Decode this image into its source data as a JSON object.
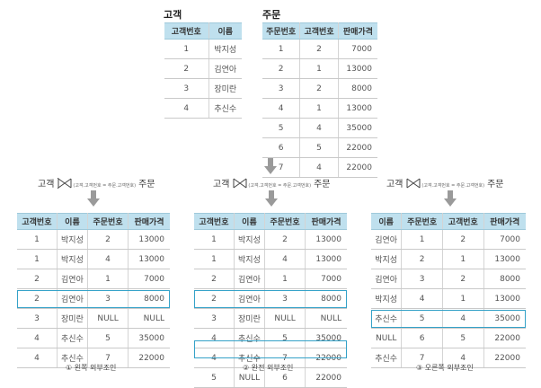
{
  "customer": {
    "title": "고객",
    "headers": [
      "고객번호",
      "이름"
    ],
    "rows": [
      [
        "1",
        "박지성"
      ],
      [
        "2",
        "김연아"
      ],
      [
        "3",
        "장미란"
      ],
      [
        "4",
        "추신수"
      ]
    ]
  },
  "orders": {
    "title": "주문",
    "headers": [
      "주문번호",
      "고객번호",
      "판매가격"
    ],
    "rows": [
      [
        "1",
        "2",
        "7000"
      ],
      [
        "2",
        "1",
        "13000"
      ],
      [
        "3",
        "2",
        "8000"
      ],
      [
        "4",
        "1",
        "13000"
      ],
      [
        "5",
        "4",
        "35000"
      ],
      [
        "6",
        "5",
        "22000"
      ],
      [
        "7",
        "4",
        "22000"
      ]
    ]
  },
  "joins": [
    {
      "left_label": "고객",
      "right_label": "주문",
      "condition": "(고객.고객번호 = 주문.고객번호)",
      "headers": [
        "고객번호",
        "이름",
        "주문번호",
        "판매가격"
      ],
      "rows": [
        [
          "1",
          "박지성",
          "2",
          "13000"
        ],
        [
          "1",
          "박지성",
          "4",
          "13000"
        ],
        [
          "2",
          "김연아",
          "1",
          "7000"
        ],
        [
          "2",
          "김연아",
          "3",
          "8000"
        ],
        [
          "3",
          "장미란",
          "NULL",
          "NULL"
        ],
        [
          "4",
          "추신수",
          "5",
          "35000"
        ],
        [
          "4",
          "추신수",
          "7",
          "22000"
        ]
      ],
      "caption": "① 왼쪽 외부조인"
    },
    {
      "left_label": "고객",
      "right_label": "주문",
      "condition": "(고객.고객번호 = 주문.고객번호)",
      "headers": [
        "고객번호",
        "이름",
        "주문번호",
        "판매가격"
      ],
      "rows": [
        [
          "1",
          "박지성",
          "2",
          "13000"
        ],
        [
          "1",
          "박지성",
          "4",
          "13000"
        ],
        [
          "2",
          "김연아",
          "1",
          "7000"
        ],
        [
          "2",
          "김연아",
          "3",
          "8000"
        ],
        [
          "3",
          "장미란",
          "NULL",
          "NULL"
        ],
        [
          "4",
          "추신수",
          "5",
          "35000"
        ],
        [
          "4",
          "추신수",
          "7",
          "22000"
        ],
        [
          "5",
          "NULL",
          "6",
          "22000"
        ]
      ],
      "caption": "② 완전 외부조인"
    },
    {
      "left_label": "고객",
      "right_label": "주문",
      "condition": "(고객.고객번호 = 주문.고객번호)",
      "headers": [
        "이름",
        "주문번호",
        "고객번호",
        "판매가격"
      ],
      "rows": [
        [
          "김연아",
          "1",
          "2",
          "7000"
        ],
        [
          "박지성",
          "2",
          "1",
          "13000"
        ],
        [
          "김연아",
          "3",
          "2",
          "8000"
        ],
        [
          "박지성",
          "4",
          "1",
          "13000"
        ],
        [
          "추신수",
          "5",
          "4",
          "35000"
        ],
        [
          "NULL",
          "6",
          "5",
          "22000"
        ],
        [
          "추신수",
          "7",
          "4",
          "22000"
        ]
      ],
      "caption": "③ 오른쪽 외부조인"
    }
  ]
}
